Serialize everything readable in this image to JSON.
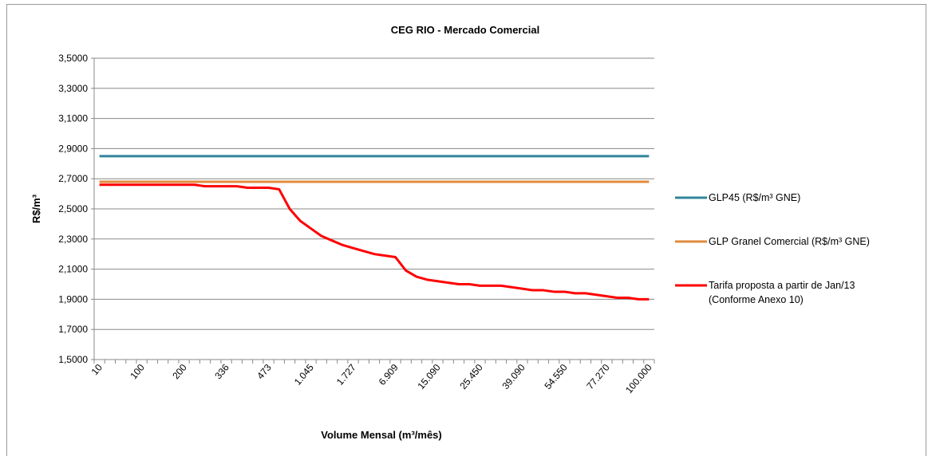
{
  "chart_data": {
    "type": "line",
    "title": "CEG RIO - Mercado Comercial",
    "xlabel": "Volume Mensal (m³/mês)",
    "ylabel": "R$/m³",
    "categories": [
      "10",
      null,
      null,
      null,
      "100",
      null,
      null,
      null,
      "200",
      null,
      null,
      null,
      "336",
      null,
      null,
      null,
      "473",
      null,
      null,
      null,
      "1.045",
      null,
      null,
      null,
      "1.727",
      null,
      null,
      null,
      "6.909",
      null,
      null,
      null,
      "15.090",
      null,
      null,
      null,
      "25.450",
      null,
      null,
      null,
      "39.090",
      null,
      null,
      null,
      "54.550",
      null,
      null,
      null,
      "77.270",
      null,
      null,
      null,
      "100.000"
    ],
    "series": [
      {
        "name": "GLP45  (R$/m³ GNE)",
        "color": "#31849b",
        "values": [
          2.85,
          2.85,
          2.85,
          2.85,
          2.85,
          2.85,
          2.85,
          2.85,
          2.85,
          2.85,
          2.85,
          2.85,
          2.85,
          2.85,
          2.85,
          2.85,
          2.85,
          2.85,
          2.85,
          2.85,
          2.85,
          2.85,
          2.85,
          2.85,
          2.85,
          2.85,
          2.85,
          2.85,
          2.85,
          2.85,
          2.85,
          2.85,
          2.85,
          2.85,
          2.85,
          2.85,
          2.85,
          2.85,
          2.85,
          2.85,
          2.85,
          2.85,
          2.85,
          2.85,
          2.85,
          2.85,
          2.85,
          2.85,
          2.85,
          2.85,
          2.85,
          2.85,
          2.85
        ]
      },
      {
        "name": "GLP Granel Comercial  (R$/m³ GNE)",
        "color": "#e08b3c",
        "values": [
          2.68,
          2.68,
          2.68,
          2.68,
          2.68,
          2.68,
          2.68,
          2.68,
          2.68,
          2.68,
          2.68,
          2.68,
          2.68,
          2.68,
          2.68,
          2.68,
          2.68,
          2.68,
          2.68,
          2.68,
          2.68,
          2.68,
          2.68,
          2.68,
          2.68,
          2.68,
          2.68,
          2.68,
          2.68,
          2.68,
          2.68,
          2.68,
          2.68,
          2.68,
          2.68,
          2.68,
          2.68,
          2.68,
          2.68,
          2.68,
          2.68,
          2.68,
          2.68,
          2.68,
          2.68,
          2.68,
          2.68,
          2.68,
          2.68,
          2.68,
          2.68,
          2.68,
          2.68
        ]
      },
      {
        "name": "Tarifa proposta a partir de Jan/13 (Conforme Anexo 10)",
        "color": "#ff0000",
        "values": [
          2.66,
          2.66,
          2.66,
          2.66,
          2.66,
          2.66,
          2.66,
          2.66,
          2.66,
          2.66,
          2.65,
          2.65,
          2.65,
          2.65,
          2.64,
          2.64,
          2.64,
          2.63,
          2.5,
          2.42,
          2.37,
          2.32,
          2.29,
          2.26,
          2.24,
          2.22,
          2.2,
          2.19,
          2.18,
          2.09,
          2.05,
          2.03,
          2.02,
          2.01,
          2.0,
          2.0,
          1.99,
          1.99,
          1.99,
          1.98,
          1.97,
          1.96,
          1.96,
          1.95,
          1.95,
          1.94,
          1.94,
          1.93,
          1.92,
          1.91,
          1.91,
          1.9,
          1.9
        ]
      }
    ],
    "ylim": [
      1.5,
      3.5
    ],
    "yticks": [
      {
        "value": 1.5,
        "label": "1,5000"
      },
      {
        "value": 1.7,
        "label": "1,7000"
      },
      {
        "value": 1.9,
        "label": "1,9000"
      },
      {
        "value": 2.1,
        "label": "2,1000"
      },
      {
        "value": 2.3,
        "label": "2,3000"
      },
      {
        "value": 2.5,
        "label": "2,5000"
      },
      {
        "value": 2.7,
        "label": "2,7000"
      },
      {
        "value": 2.9,
        "label": "2,9000"
      },
      {
        "value": 3.1,
        "label": "3,1000"
      },
      {
        "value": 3.3,
        "label": "3,3000"
      },
      {
        "value": 3.5,
        "label": "3,5000"
      }
    ],
    "grid": true,
    "legend": "right"
  }
}
